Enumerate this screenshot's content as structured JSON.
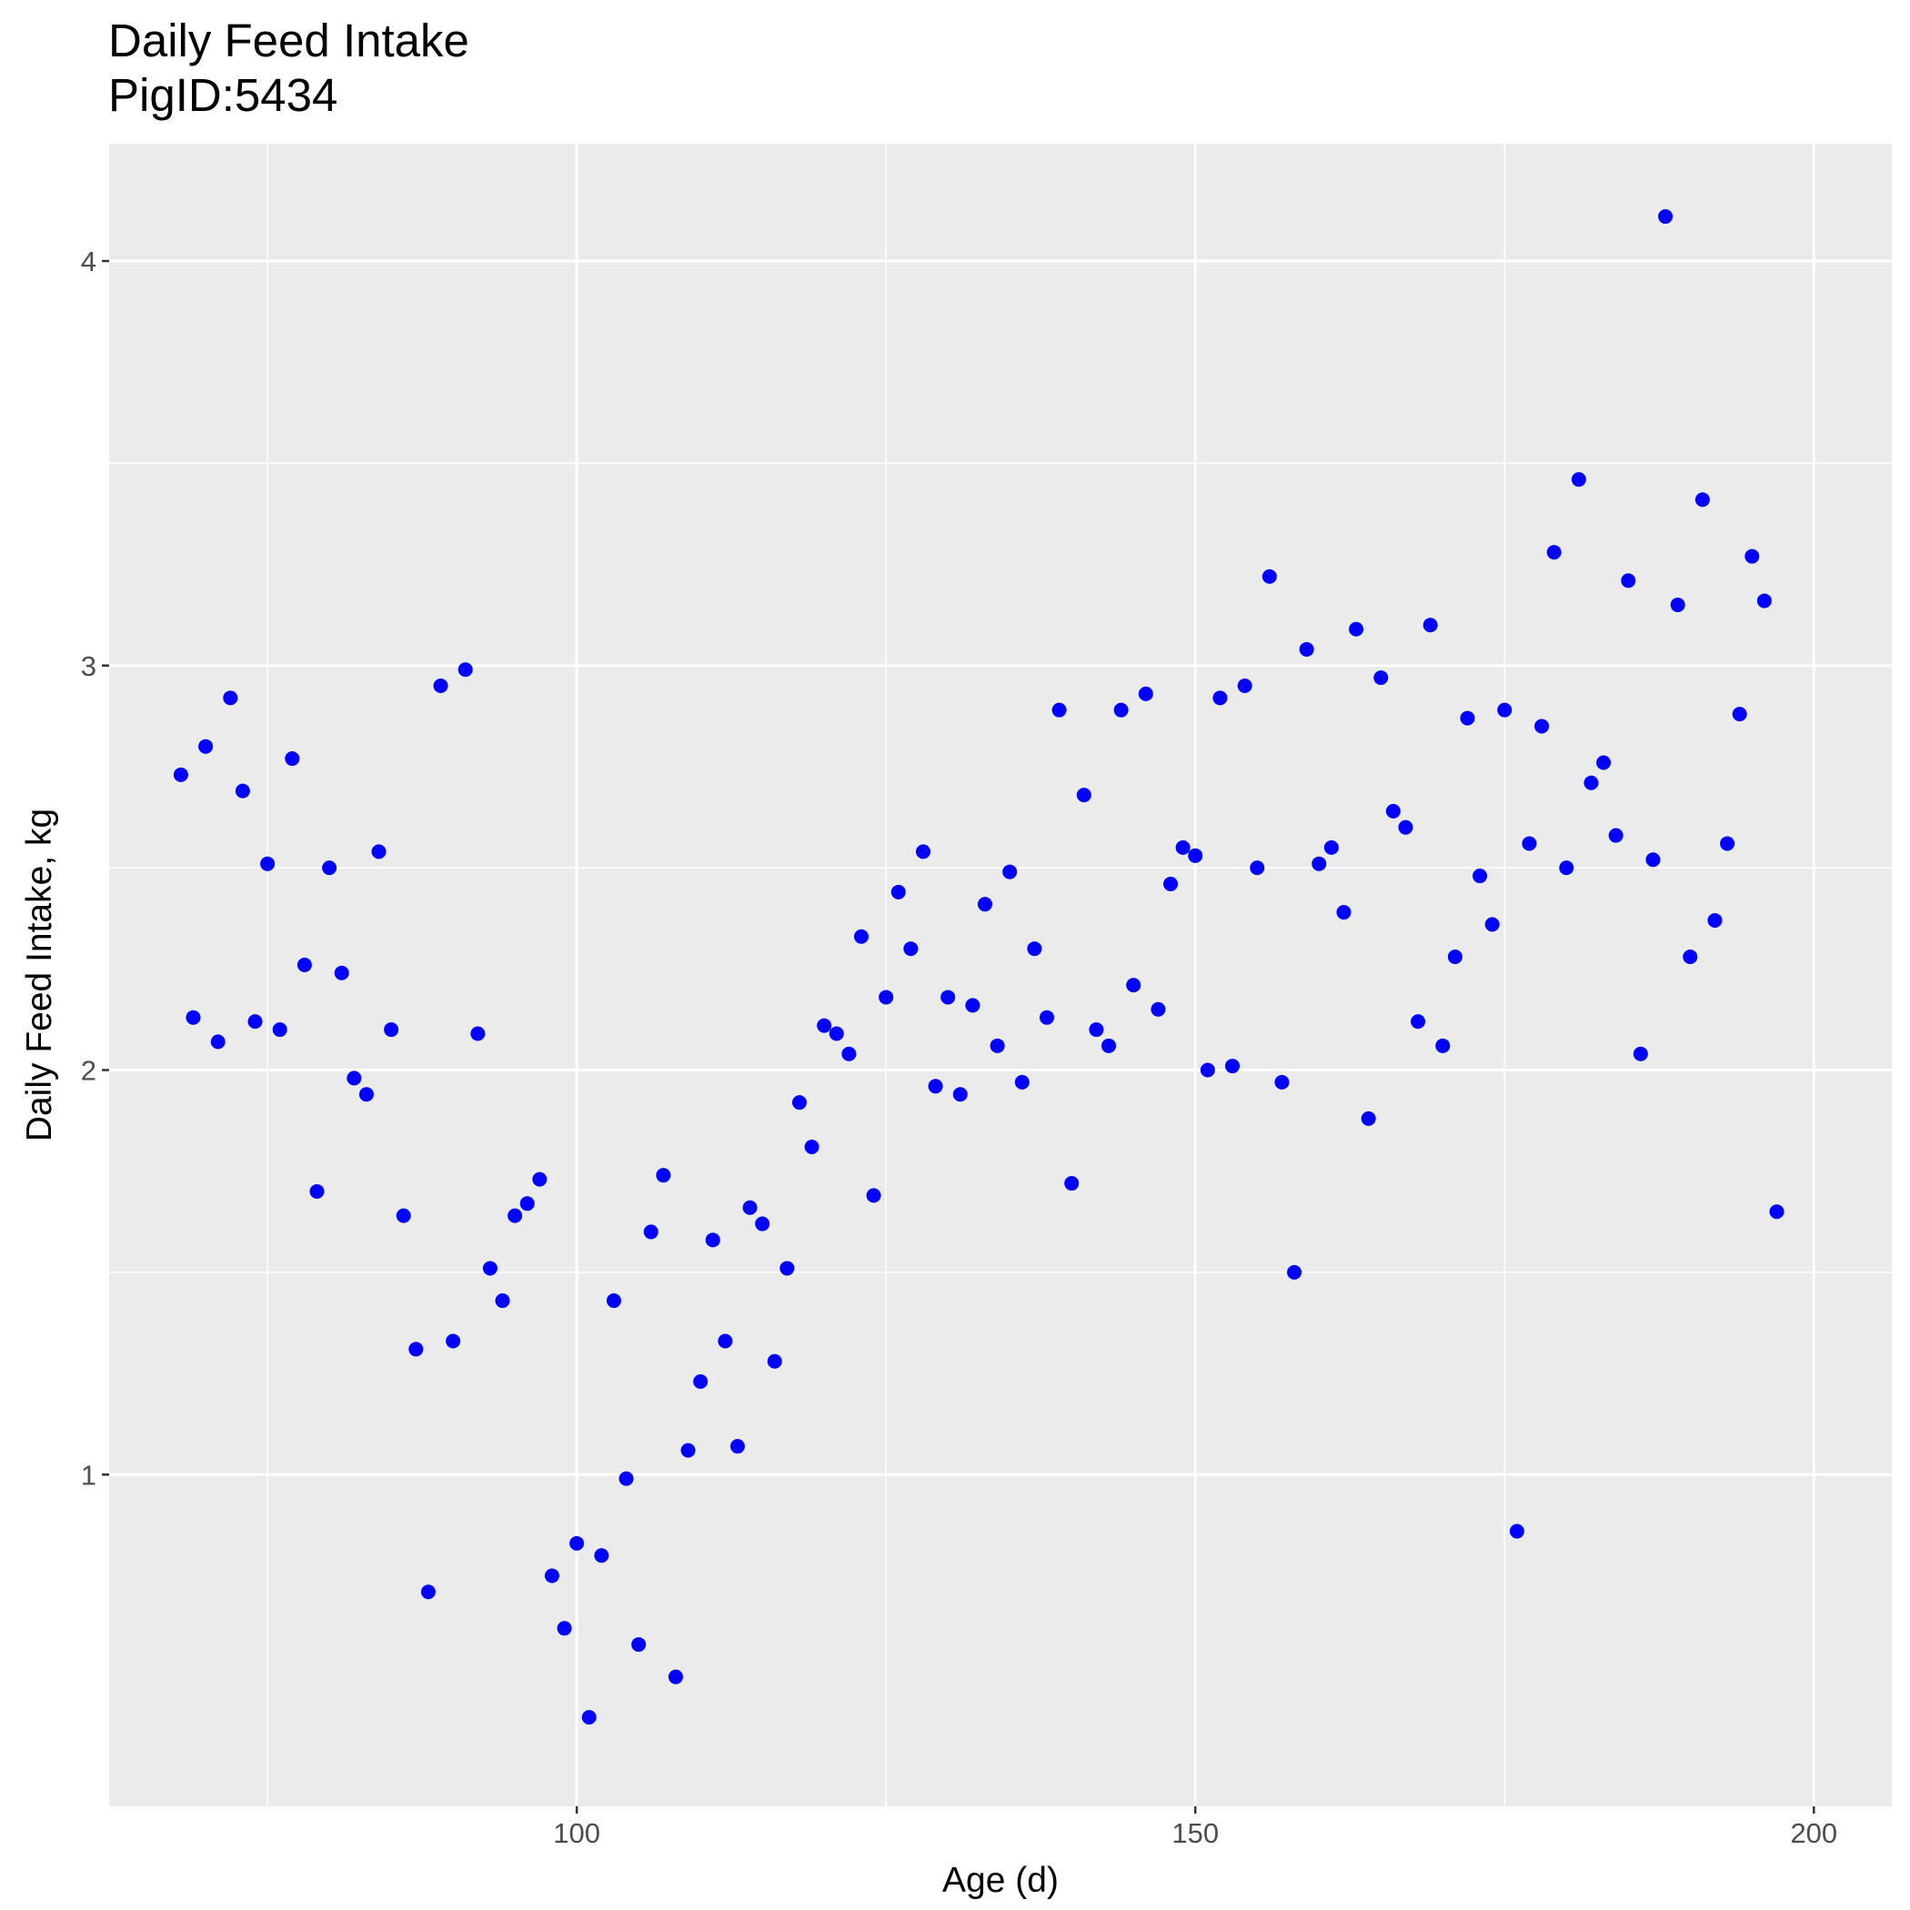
{
  "chart_data": {
    "type": "scatter",
    "title": "Daily Feed Intake",
    "subtitle": "PigID:5434",
    "xlabel": "Age (d)",
    "ylabel": "Daily Feed Intake, kg",
    "xlim": [
      62.2,
      206.3
    ],
    "ylim": [
      0.18,
      4.29
    ],
    "x_ticks": [
      100,
      150,
      200
    ],
    "y_ticks": [
      1,
      2,
      3,
      4
    ],
    "x_minor_ticks": [
      75,
      125,
      175
    ],
    "y_minor_ticks": [
      1.5,
      2.5,
      3.5
    ],
    "grid": true,
    "legend": "none",
    "colors": {
      "points": "#0000ff",
      "panel": "#ebebeb",
      "grid": "#ffffff"
    },
    "points": [
      [
        68,
        2.73
      ],
      [
        69,
        2.13
      ],
      [
        70,
        2.8
      ],
      [
        71,
        2.07
      ],
      [
        72,
        2.92
      ],
      [
        73,
        2.69
      ],
      [
        74,
        2.12
      ],
      [
        75,
        2.51
      ],
      [
        76,
        2.1
      ],
      [
        77,
        2.77
      ],
      [
        78,
        2.26
      ],
      [
        79,
        1.7
      ],
      [
        80,
        2.5
      ],
      [
        81,
        2.24
      ],
      [
        82,
        1.98
      ],
      [
        83,
        1.94
      ],
      [
        84,
        2.54
      ],
      [
        85,
        2.1
      ],
      [
        86,
        1.64
      ],
      [
        87,
        1.31
      ],
      [
        88,
        0.71
      ],
      [
        89,
        2.95
      ],
      [
        90,
        1.33
      ],
      [
        91,
        2.99
      ],
      [
        92,
        2.09
      ],
      [
        93,
        1.51
      ],
      [
        94,
        1.43
      ],
      [
        95,
        1.64
      ],
      [
        96,
        1.67
      ],
      [
        97,
        1.73
      ],
      [
        98,
        0.75
      ],
      [
        99,
        0.62
      ],
      [
        100,
        0.83
      ],
      [
        101,
        0.4
      ],
      [
        102,
        0.8
      ],
      [
        103,
        1.43
      ],
      [
        104,
        0.99
      ],
      [
        105,
        0.58
      ],
      [
        106,
        1.6
      ],
      [
        107,
        1.74
      ],
      [
        108,
        0.5
      ],
      [
        109,
        1.06
      ],
      [
        110,
        1.23
      ],
      [
        111,
        1.58
      ],
      [
        112,
        1.33
      ],
      [
        113,
        1.07
      ],
      [
        114,
        1.66
      ],
      [
        115,
        1.62
      ],
      [
        116,
        1.28
      ],
      [
        117,
        1.51
      ],
      [
        118,
        1.92
      ],
      [
        119,
        1.81
      ],
      [
        120,
        2.11
      ],
      [
        121,
        2.09
      ],
      [
        122,
        2.04
      ],
      [
        123,
        2.33
      ],
      [
        124,
        1.69
      ],
      [
        125,
        2.18
      ],
      [
        126,
        2.44
      ],
      [
        127,
        2.3
      ],
      [
        128,
        2.54
      ],
      [
        129,
        1.96
      ],
      [
        130,
        2.18
      ],
      [
        131,
        1.94
      ],
      [
        132,
        2.16
      ],
      [
        133,
        2.41
      ],
      [
        134,
        2.06
      ],
      [
        135,
        2.49
      ],
      [
        136,
        1.97
      ],
      [
        137,
        2.3
      ],
      [
        138,
        2.13
      ],
      [
        139,
        2.89
      ],
      [
        140,
        1.72
      ],
      [
        141,
        2.68
      ],
      [
        142,
        2.1
      ],
      [
        143,
        2.06
      ],
      [
        144,
        2.89
      ],
      [
        145,
        2.21
      ],
      [
        146,
        2.93
      ],
      [
        147,
        2.15
      ],
      [
        148,
        2.46
      ],
      [
        149,
        2.55
      ],
      [
        150,
        2.53
      ],
      [
        151,
        2.0
      ],
      [
        152,
        2.92
      ],
      [
        153,
        2.01
      ],
      [
        154,
        2.95
      ],
      [
        155,
        2.5
      ],
      [
        156,
        3.22
      ],
      [
        157,
        1.97
      ],
      [
        158,
        1.5
      ],
      [
        159,
        3.04
      ],
      [
        160,
        2.51
      ],
      [
        161,
        2.55
      ],
      [
        162,
        2.39
      ],
      [
        163,
        3.09
      ],
      [
        164,
        1.88
      ],
      [
        165,
        2.97
      ],
      [
        166,
        2.64
      ],
      [
        167,
        2.6
      ],
      [
        168,
        2.12
      ],
      [
        169,
        3.1
      ],
      [
        170,
        2.06
      ],
      [
        171,
        2.28
      ],
      [
        172,
        2.87
      ],
      [
        173,
        2.48
      ],
      [
        174,
        2.36
      ],
      [
        175,
        2.89
      ],
      [
        176,
        0.86
      ],
      [
        177,
        2.56
      ],
      [
        178,
        2.85
      ],
      [
        179,
        3.28
      ],
      [
        180,
        2.5
      ],
      [
        181,
        3.46
      ],
      [
        182,
        2.71
      ],
      [
        183,
        2.76
      ],
      [
        184,
        2.58
      ],
      [
        185,
        3.21
      ],
      [
        186,
        2.04
      ],
      [
        187,
        2.52
      ],
      [
        188,
        4.11
      ],
      [
        189,
        3.15
      ],
      [
        190,
        2.28
      ],
      [
        191,
        3.41
      ],
      [
        192,
        2.37
      ],
      [
        193,
        2.56
      ],
      [
        194,
        2.88
      ],
      [
        195,
        3.27
      ],
      [
        196,
        3.16
      ],
      [
        197,
        1.65
      ]
    ]
  }
}
